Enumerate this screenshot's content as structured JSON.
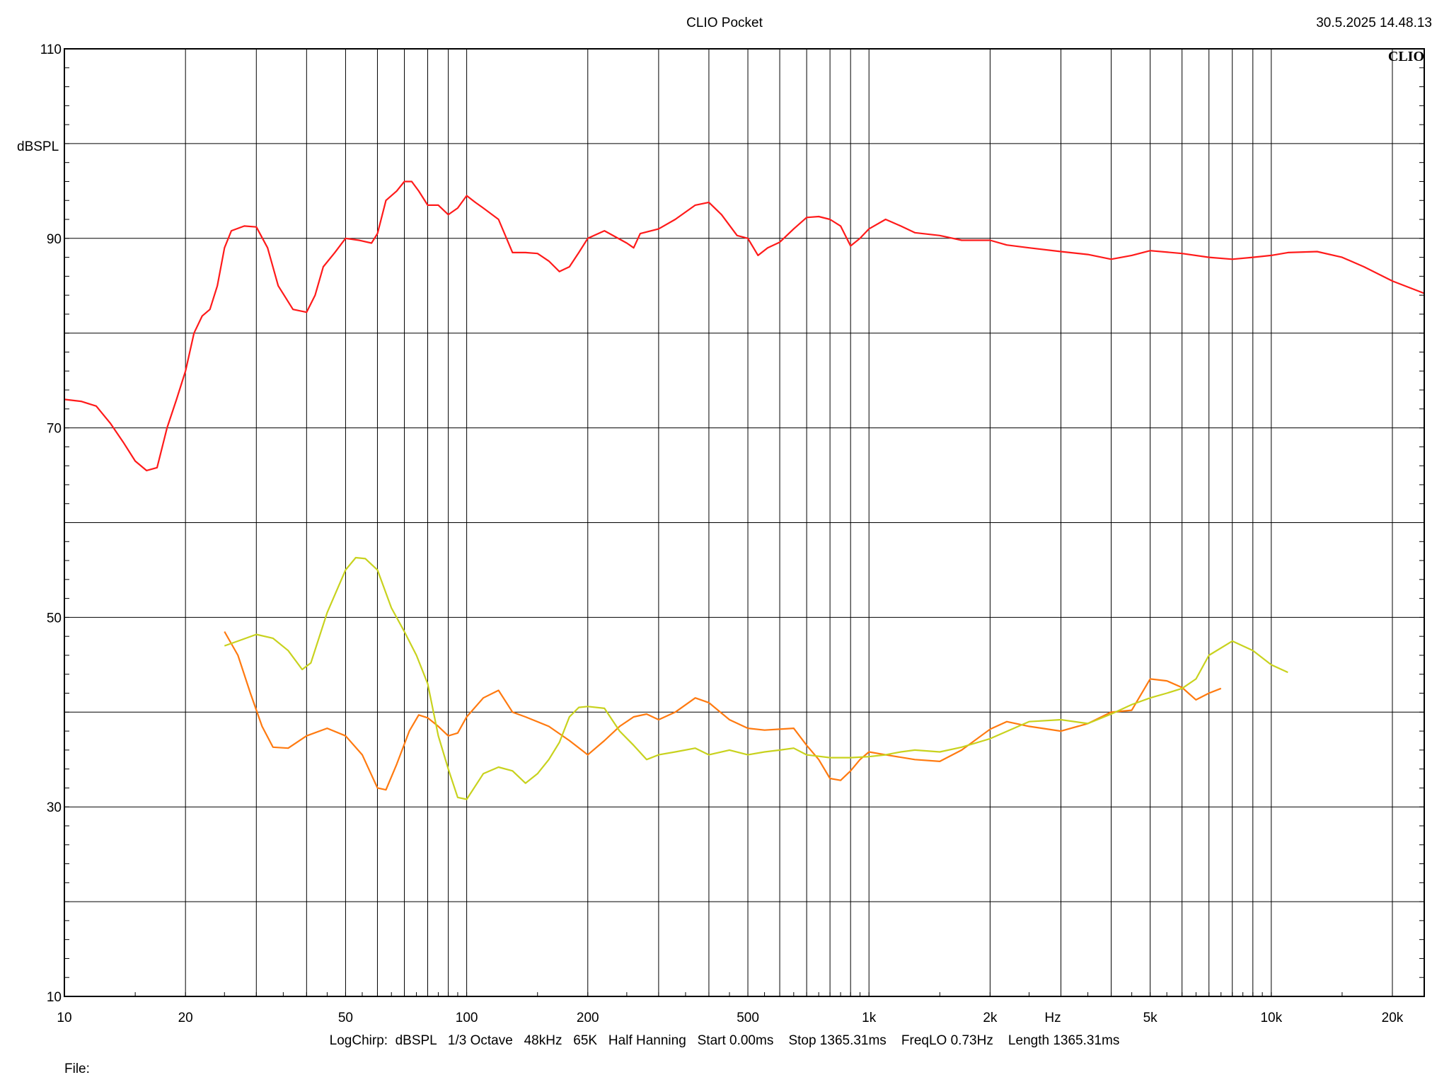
{
  "header": {
    "title": "CLIO Pocket",
    "timestamp": "30.5.2025 14.48.13"
  },
  "footer": {
    "settings": "LogChirp:  dBSPL   1/3 Octave   48kHz   65K   Half Hanning   Start 0.00ms    Stop 1365.31ms    FreqLO 0.73Hz    Length 1365.31ms",
    "file_label": "File:"
  },
  "watermark": "CLIO",
  "chart_data": {
    "type": "line",
    "xlabel": "Hz",
    "ylabel": "dBSPL",
    "xscale": "log",
    "xlim": [
      10,
      24000
    ],
    "ylim": [
      10,
      110
    ],
    "grid": true,
    "x_tick_labels": [
      {
        "v": 10,
        "label": "10"
      },
      {
        "v": 20,
        "label": "20"
      },
      {
        "v": 50,
        "label": "50"
      },
      {
        "v": 100,
        "label": "100"
      },
      {
        "v": 200,
        "label": "200"
      },
      {
        "v": 500,
        "label": "500"
      },
      {
        "v": 1000,
        "label": "1k"
      },
      {
        "v": 2000,
        "label": "2k"
      },
      {
        "v": 5000,
        "label": "5k"
      },
      {
        "v": 10000,
        "label": "10k"
      },
      {
        "v": 20000,
        "label": "20k"
      }
    ],
    "y_tick_labels": [
      {
        "v": 110,
        "label": "110"
      },
      {
        "v": 90,
        "label": "90"
      },
      {
        "v": 70,
        "label": "70"
      },
      {
        "v": 50,
        "label": "50"
      },
      {
        "v": 30,
        "label": "30"
      },
      {
        "v": 10,
        "label": "10"
      }
    ],
    "series": [
      {
        "color": "#ff1a1a",
        "points": [
          [
            10,
            73
          ],
          [
            11,
            72.8
          ],
          [
            12,
            72.3
          ],
          [
            13,
            70.5
          ],
          [
            14,
            68.5
          ],
          [
            15,
            66.5
          ],
          [
            16,
            65.5
          ],
          [
            17,
            65.8
          ],
          [
            18,
            70
          ],
          [
            19,
            73
          ],
          [
            20,
            76
          ],
          [
            21,
            80
          ],
          [
            22,
            81.8
          ],
          [
            23,
            82.5
          ],
          [
            24,
            85
          ],
          [
            25,
            89
          ],
          [
            26,
            90.8
          ],
          [
            28,
            91.3
          ],
          [
            30,
            91.2
          ],
          [
            32,
            89
          ],
          [
            34,
            85
          ],
          [
            37,
            82.5
          ],
          [
            40,
            82.2
          ],
          [
            42,
            84
          ],
          [
            44,
            87
          ],
          [
            47,
            88.5
          ],
          [
            50,
            90
          ],
          [
            54,
            89.8
          ],
          [
            58,
            89.5
          ],
          [
            60,
            90.5
          ],
          [
            63,
            94
          ],
          [
            67,
            95
          ],
          [
            70,
            96
          ],
          [
            73,
            96
          ],
          [
            76,
            95
          ],
          [
            80,
            93.5
          ],
          [
            85,
            93.5
          ],
          [
            90,
            92.5
          ],
          [
            95,
            93.2
          ],
          [
            100,
            94.5
          ],
          [
            105,
            93.8
          ],
          [
            110,
            93.2
          ],
          [
            120,
            92
          ],
          [
            130,
            88.5
          ],
          [
            140,
            88.5
          ],
          [
            150,
            88.4
          ],
          [
            160,
            87.6
          ],
          [
            170,
            86.5
          ],
          [
            180,
            87
          ],
          [
            190,
            88.5
          ],
          [
            200,
            90
          ],
          [
            220,
            90.8
          ],
          [
            250,
            89.5
          ],
          [
            260,
            89
          ],
          [
            270,
            90.5
          ],
          [
            300,
            91
          ],
          [
            330,
            92
          ],
          [
            370,
            93.5
          ],
          [
            400,
            93.8
          ],
          [
            430,
            92.5
          ],
          [
            470,
            90.3
          ],
          [
            500,
            90
          ],
          [
            530,
            88.2
          ],
          [
            560,
            89
          ],
          [
            600,
            89.6
          ],
          [
            650,
            91
          ],
          [
            700,
            92.2
          ],
          [
            750,
            92.3
          ],
          [
            800,
            92
          ],
          [
            850,
            91.3
          ],
          [
            900,
            89.2
          ],
          [
            950,
            90
          ],
          [
            1000,
            91
          ],
          [
            1100,
            92
          ],
          [
            1200,
            91.3
          ],
          [
            1300,
            90.6
          ],
          [
            1500,
            90.3
          ],
          [
            1700,
            89.8
          ],
          [
            2000,
            89.8
          ],
          [
            2200,
            89.3
          ],
          [
            2500,
            89
          ],
          [
            3000,
            88.6
          ],
          [
            3500,
            88.3
          ],
          [
            4000,
            87.8
          ],
          [
            4500,
            88.2
          ],
          [
            5000,
            88.7
          ],
          [
            6000,
            88.4
          ],
          [
            7000,
            88
          ],
          [
            8000,
            87.8
          ],
          [
            9000,
            88
          ],
          [
            10000,
            88.2
          ],
          [
            11000,
            88.5
          ],
          [
            13000,
            88.6
          ],
          [
            15000,
            88
          ],
          [
            17000,
            87
          ],
          [
            20000,
            85.5
          ],
          [
            24000,
            84.2
          ]
        ]
      },
      {
        "color": "#ff7a10",
        "points": [
          [
            25,
            48.5
          ],
          [
            27,
            46
          ],
          [
            29,
            42
          ],
          [
            31,
            38.5
          ],
          [
            33,
            36.3
          ],
          [
            36,
            36.2
          ],
          [
            40,
            37.5
          ],
          [
            45,
            38.3
          ],
          [
            50,
            37.5
          ],
          [
            55,
            35.5
          ],
          [
            60,
            32
          ],
          [
            63,
            31.8
          ],
          [
            67,
            34.5
          ],
          [
            72,
            38
          ],
          [
            76,
            39.7
          ],
          [
            80,
            39.4
          ],
          [
            85,
            38.5
          ],
          [
            90,
            37.5
          ],
          [
            95,
            37.8
          ],
          [
            100,
            39.5
          ],
          [
            110,
            41.5
          ],
          [
            120,
            42.3
          ],
          [
            130,
            40
          ],
          [
            140,
            39.5
          ],
          [
            160,
            38.5
          ],
          [
            180,
            37
          ],
          [
            200,
            35.5
          ],
          [
            220,
            37
          ],
          [
            240,
            38.5
          ],
          [
            260,
            39.5
          ],
          [
            280,
            39.8
          ],
          [
            300,
            39.2
          ],
          [
            330,
            40
          ],
          [
            370,
            41.5
          ],
          [
            400,
            41
          ],
          [
            450,
            39.2
          ],
          [
            500,
            38.3
          ],
          [
            550,
            38.1
          ],
          [
            600,
            38.2
          ],
          [
            650,
            38.3
          ],
          [
            700,
            36.5
          ],
          [
            750,
            35
          ],
          [
            800,
            33
          ],
          [
            850,
            32.8
          ],
          [
            900,
            33.8
          ],
          [
            950,
            35
          ],
          [
            1000,
            35.8
          ],
          [
            1100,
            35.5
          ],
          [
            1300,
            35
          ],
          [
            1500,
            34.8
          ],
          [
            1700,
            36
          ],
          [
            2000,
            38.2
          ],
          [
            2200,
            39
          ],
          [
            2500,
            38.5
          ],
          [
            3000,
            38
          ],
          [
            3500,
            38.8
          ],
          [
            4000,
            40
          ],
          [
            4500,
            40.2
          ],
          [
            5000,
            43.5
          ],
          [
            5500,
            43.3
          ],
          [
            6000,
            42.6
          ],
          [
            6500,
            41.3
          ],
          [
            7000,
            42
          ],
          [
            7500,
            42.5
          ]
        ]
      },
      {
        "color": "#c8d21e",
        "points": [
          [
            25,
            47
          ],
          [
            27,
            47.5
          ],
          [
            30,
            48.2
          ],
          [
            33,
            47.8
          ],
          [
            36,
            46.5
          ],
          [
            39,
            44.5
          ],
          [
            41,
            45.2
          ],
          [
            45,
            50.5
          ],
          [
            50,
            55
          ],
          [
            53,
            56.3
          ],
          [
            56,
            56.2
          ],
          [
            60,
            55
          ],
          [
            65,
            51
          ],
          [
            70,
            48.5
          ],
          [
            75,
            46
          ],
          [
            80,
            43
          ],
          [
            85,
            37.5
          ],
          [
            90,
            34
          ],
          [
            95,
            31
          ],
          [
            100,
            30.8
          ],
          [
            110,
            33.5
          ],
          [
            120,
            34.2
          ],
          [
            130,
            33.8
          ],
          [
            140,
            32.5
          ],
          [
            150,
            33.5
          ],
          [
            160,
            35
          ],
          [
            170,
            36.8
          ],
          [
            180,
            39.5
          ],
          [
            190,
            40.5
          ],
          [
            200,
            40.6
          ],
          [
            220,
            40.4
          ],
          [
            240,
            38
          ],
          [
            260,
            36.5
          ],
          [
            280,
            35
          ],
          [
            300,
            35.5
          ],
          [
            330,
            35.8
          ],
          [
            370,
            36.2
          ],
          [
            400,
            35.5
          ],
          [
            450,
            36
          ],
          [
            500,
            35.5
          ],
          [
            550,
            35.8
          ],
          [
            600,
            36
          ],
          [
            650,
            36.2
          ],
          [
            700,
            35.5
          ],
          [
            800,
            35.2
          ],
          [
            900,
            35.2
          ],
          [
            1000,
            35.3
          ],
          [
            1100,
            35.5
          ],
          [
            1200,
            35.8
          ],
          [
            1300,
            36
          ],
          [
            1500,
            35.8
          ],
          [
            1700,
            36.3
          ],
          [
            2000,
            37.2
          ],
          [
            2500,
            39
          ],
          [
            3000,
            39.2
          ],
          [
            3500,
            38.8
          ],
          [
            4000,
            39.8
          ],
          [
            4500,
            40.8
          ],
          [
            5000,
            41.5
          ],
          [
            5500,
            42
          ],
          [
            6000,
            42.5
          ],
          [
            6500,
            43.5
          ],
          [
            7000,
            46
          ],
          [
            8000,
            47.5
          ],
          [
            9000,
            46.5
          ],
          [
            10000,
            45
          ],
          [
            11000,
            44.2
          ]
        ]
      }
    ]
  }
}
